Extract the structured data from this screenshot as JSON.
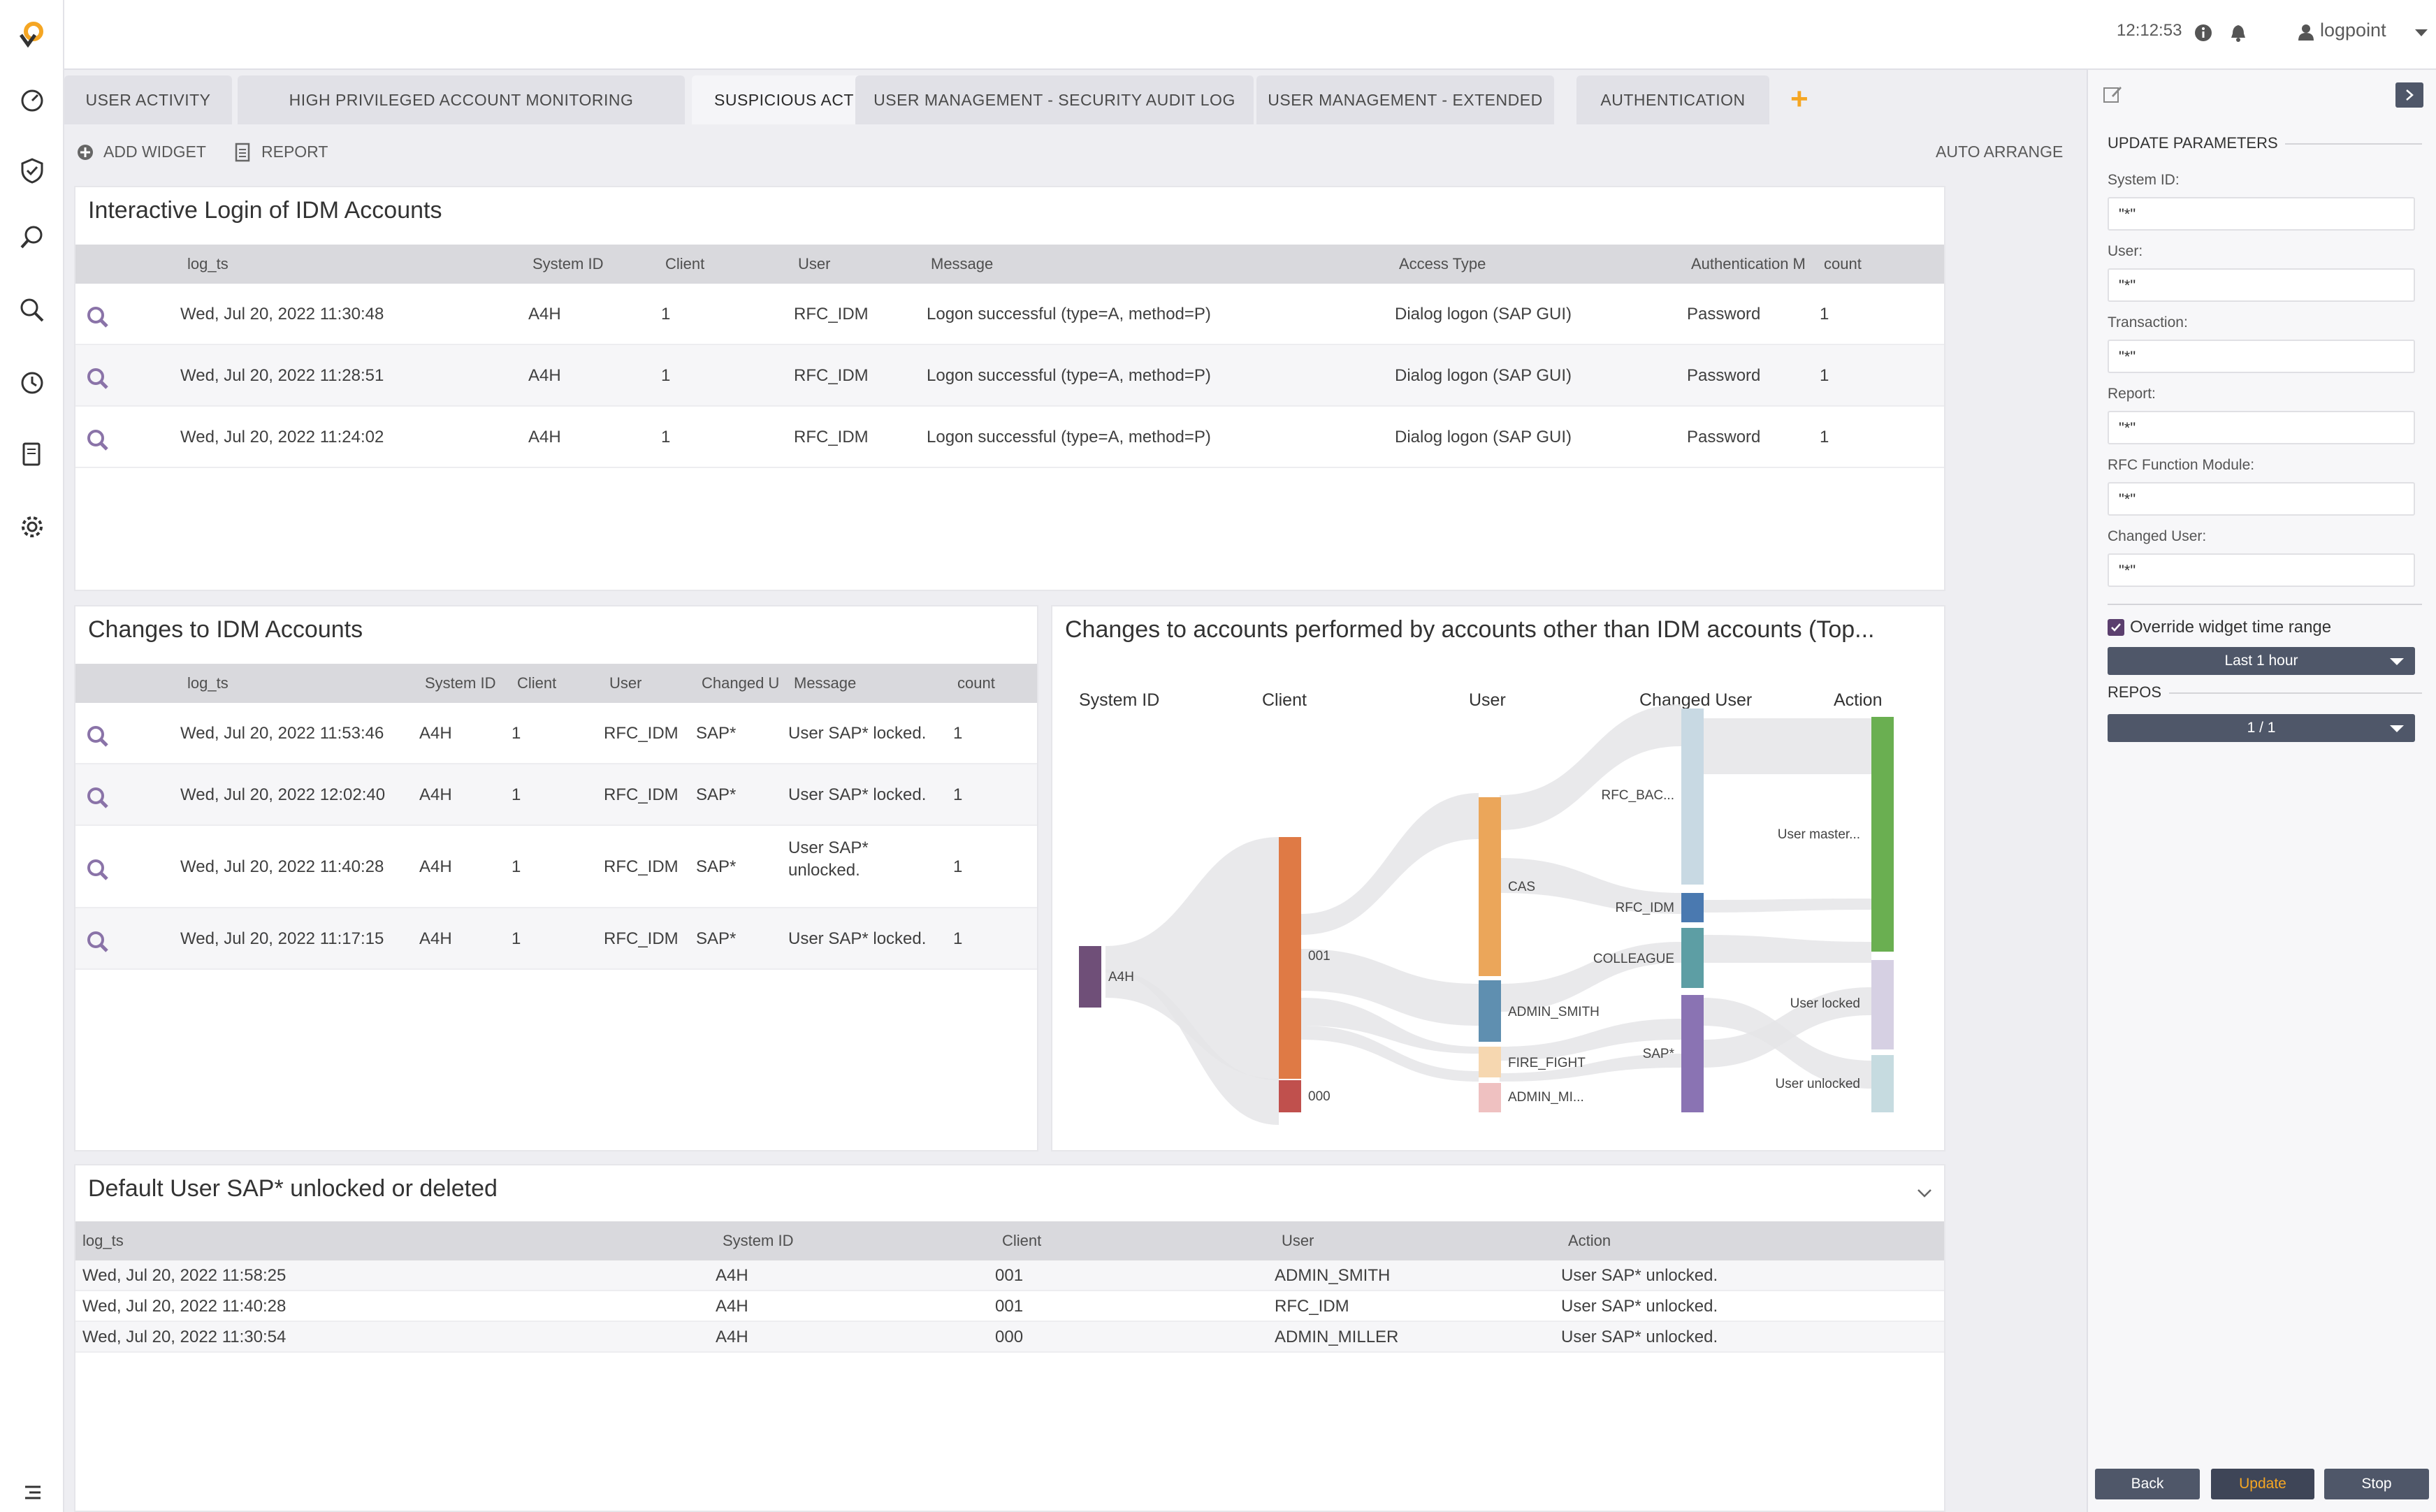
{
  "topbar": {
    "time": "12:12:53",
    "user": "logpoint"
  },
  "tabs": [
    {
      "label": "USER ACTIVITY"
    },
    {
      "label": "HIGH PRIVILEGED ACCOUNT MONITORING"
    },
    {
      "label": "SUSPICIOUS ACTIVITY"
    },
    {
      "label": "USER MANAGEMENT - SECURITY AUDIT LOG"
    },
    {
      "label": "USER MANAGEMENT - EXTENDED"
    },
    {
      "label": "AUTHENTICATION"
    }
  ],
  "tab_add": "+",
  "toolbar": {
    "add_widget": "ADD WIDGET",
    "report": "REPORT",
    "auto_arrange": "AUTO ARRANGE"
  },
  "widget1": {
    "title": "Interactive Login of IDM Accounts",
    "columns": [
      "log_ts",
      "System ID",
      "Client",
      "User",
      "Message",
      "Access Type",
      "Authentication M",
      "count"
    ],
    "rows": [
      [
        "Wed, Jul 20, 2022 11:30:48",
        "A4H",
        "1",
        "RFC_IDM",
        "Logon successful (type=A, method=P)",
        "Dialog logon (SAP GUI)",
        "Password",
        "1"
      ],
      [
        "Wed, Jul 20, 2022 11:28:51",
        "A4H",
        "1",
        "RFC_IDM",
        "Logon successful (type=A, method=P)",
        "Dialog logon (SAP GUI)",
        "Password",
        "1"
      ],
      [
        "Wed, Jul 20, 2022 11:24:02",
        "A4H",
        "1",
        "RFC_IDM",
        "Logon successful (type=A, method=P)",
        "Dialog logon (SAP GUI)",
        "Password",
        "1"
      ]
    ]
  },
  "widget2": {
    "title": "Changes to IDM Accounts",
    "columns": [
      "log_ts",
      "System ID",
      "Client",
      "User",
      "Changed U",
      "Message",
      "count"
    ],
    "rows": [
      [
        "Wed, Jul 20, 2022 11:53:46",
        "A4H",
        "1",
        "RFC_IDM",
        "SAP*",
        "User SAP* locked.",
        "1"
      ],
      [
        "Wed, Jul 20, 2022 12:02:40",
        "A4H",
        "1",
        "RFC_IDM",
        "SAP*",
        "User SAP* locked.",
        "1"
      ],
      [
        "Wed, Jul 20, 2022 11:40:28",
        "A4H",
        "1",
        "RFC_IDM",
        "SAP*",
        "User SAP*",
        "1"
      ],
      [
        "Wed, Jul 20, 2022 11:17:15",
        "A4H",
        "1",
        "RFC_IDM",
        "SAP*",
        "User SAP* locked.",
        "1"
      ]
    ],
    "row3_message_line2": "unlocked."
  },
  "widget3": {
    "title": "Changes to accounts performed by accounts other than IDM accounts (Top...",
    "chart_data": {
      "type": "sankey",
      "columns": [
        "System ID",
        "Client",
        "User",
        "Changed User",
        "Action"
      ],
      "nodes": {
        "System ID": [
          {
            "label": "A4H",
            "color": "#6f4f78"
          }
        ],
        "Client": [
          {
            "label": "001",
            "color": "#df7a45"
          },
          {
            "label": "000",
            "color": "#c0504d"
          }
        ],
        "User": [
          {
            "label": "CAS",
            "color": "#eba65a"
          },
          {
            "label": "ADMIN_SMITH",
            "color": "#5f8fb0"
          },
          {
            "label": "FIRE_FIGHT",
            "color": "#f6d7b0"
          },
          {
            "label": "ADMIN_MI...",
            "color": "#efc1c1"
          }
        ],
        "Changed User": [
          {
            "label": "RFC_BAC...",
            "color": "#c8d9e3"
          },
          {
            "label": "RFC_IDM",
            "color": "#4a79b0"
          },
          {
            "label": "COLLEAGUE",
            "color": "#5d9ea4"
          },
          {
            "label": "SAP*",
            "color": "#8a73b3"
          }
        ],
        "Action": [
          {
            "label": "User master...",
            "color": "#6aaf51"
          },
          {
            "label": "User locked",
            "color": "#d6d0e3"
          },
          {
            "label": "User unlocked",
            "color": "#c6dbe0"
          }
        ]
      }
    }
  },
  "widget4": {
    "title": "Default User SAP* unlocked or deleted",
    "columns": [
      "log_ts",
      "System ID",
      "Client",
      "User",
      "Action"
    ],
    "rows": [
      [
        "Wed, Jul 20, 2022 11:58:25",
        "A4H",
        "001",
        "ADMIN_SMITH",
        "User SAP* unlocked."
      ],
      [
        "Wed, Jul 20, 2022 11:40:28",
        "A4H",
        "001",
        "RFC_IDM",
        "User SAP* unlocked."
      ],
      [
        "Wed, Jul 20, 2022 11:30:54",
        "A4H",
        "000",
        "ADMIN_MILLER",
        "User SAP* unlocked."
      ]
    ]
  },
  "right_panel": {
    "title": "UPDATE PARAMETERS",
    "fields": [
      {
        "label": "System ID:",
        "value": "\"*\""
      },
      {
        "label": "User:",
        "value": "\"*\""
      },
      {
        "label": "Transaction:",
        "value": "\"*\""
      },
      {
        "label": "Report:",
        "value": "\"*\""
      },
      {
        "label": "RFC Function Module:",
        "value": "\"*\""
      },
      {
        "label": "Changed User:",
        "value": "\"*\""
      }
    ],
    "override_label": "Override widget time range",
    "override_checked": true,
    "time_range": "Last 1 hour",
    "repos_label": "REPOS",
    "repos_value": "1 / 1",
    "buttons": {
      "back": "Back",
      "update": "Update",
      "stop": "Stop"
    }
  }
}
